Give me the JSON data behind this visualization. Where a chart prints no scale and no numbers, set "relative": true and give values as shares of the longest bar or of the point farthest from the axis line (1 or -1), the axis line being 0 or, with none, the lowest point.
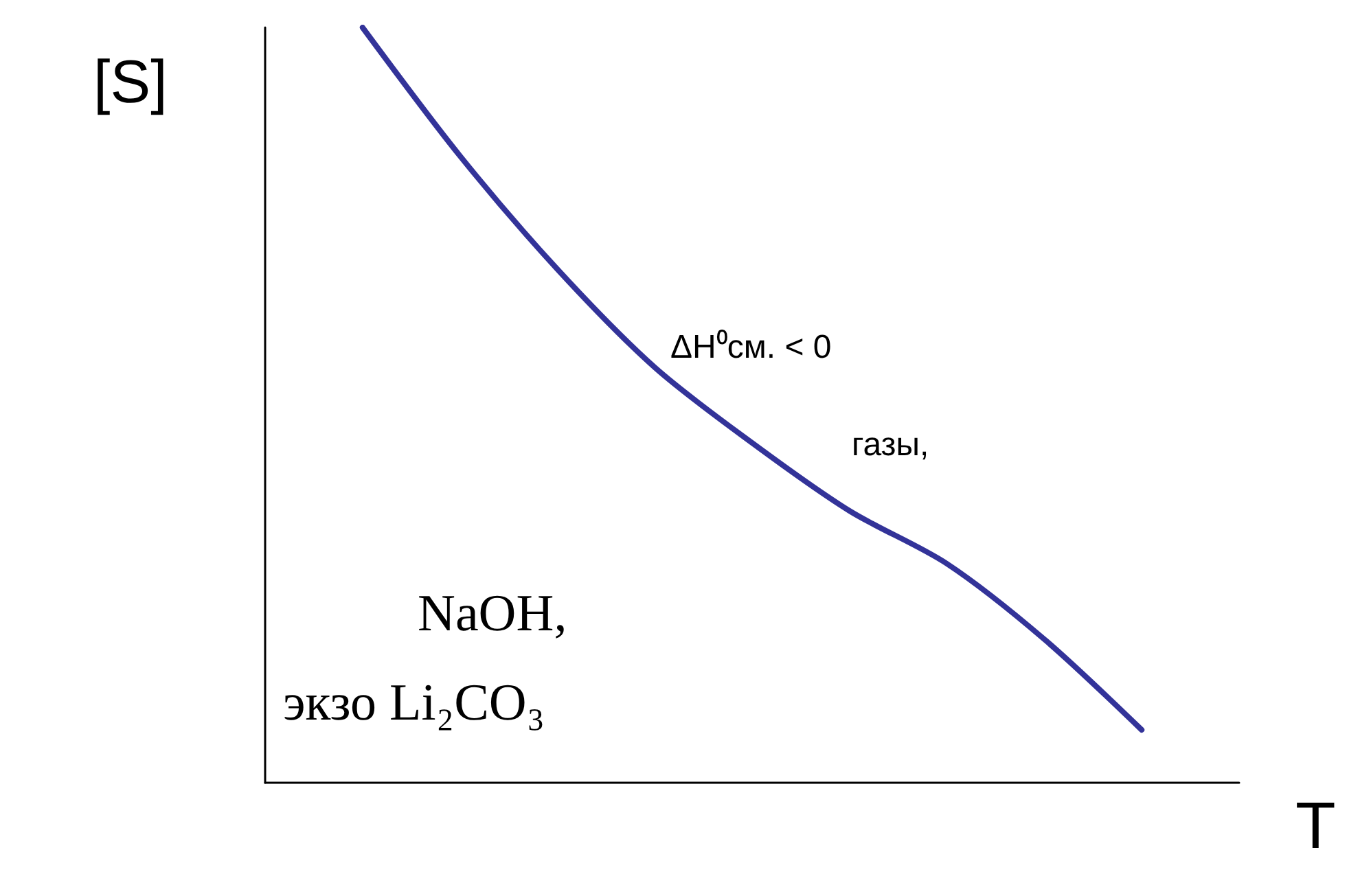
{
  "chart_data": {
    "type": "line",
    "relative": true,
    "xlabel": "T",
    "ylabel": "[S]",
    "categories": [
      null,
      null,
      null,
      null,
      null,
      null,
      null,
      null,
      null,
      null,
      null
    ],
    "series": [
      {
        "color": "#333399",
        "values": [
          null,
          1.0,
          0.83,
          0.68,
          0.55,
          0.45,
          0.36,
          0.29,
          0.19,
          0.07,
          null
        ]
      }
    ],
    "annotations": [
      "ΔH⁰см. < 0",
      "газы,",
      "NaOH,",
      "экзо Li₂CO₃"
    ],
    "marker": "none",
    "grid": false
  }
}
